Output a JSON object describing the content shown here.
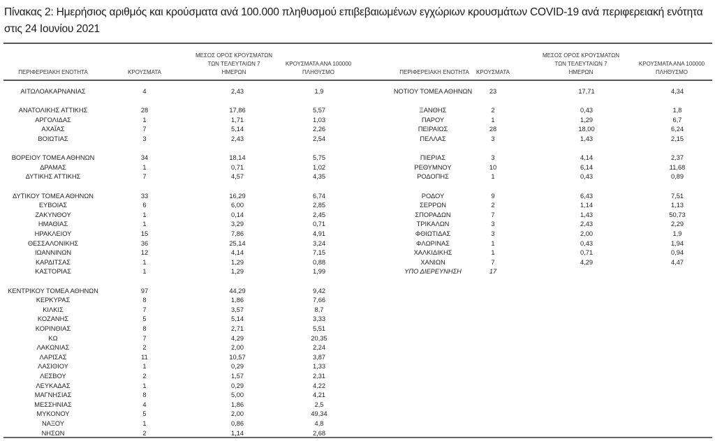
{
  "title": "Πίνακας 2: Ημερήσιος αριθμός και κρούσματα ανά 100.000 πληθυσμού επιβεβαιωμένων εγχώριων κρουσμάτων COVID-19 ανά περιφερειακή ενότητα στις 24 Ιουνίου 2021",
  "headers": {
    "region": "ΠΕΡΙΦΕΡΕΙΑΚΗ ΕΝΟΤΗΤΑ",
    "cases": "ΚΡΟΥΣΜΑΤΑ",
    "avg7_line1": "ΜΕΣΟΣ ΟΡΟΣ ΚΡΟΥΣΜΑΤΩΝ",
    "avg7_line2": "ΤΩΝ ΤΕΛΕΥΤΑΙΩΝ 7",
    "avg7_line3": "ΗΜΕΡΩΝ",
    "per100k_line1": "ΚΡΟΥΣΜΑΤΑ ΑΝΑ 100000",
    "per100k_line2": "ΠΛΗΘΥΣΜΟ"
  },
  "left_rows": [
    [
      "ΑΙΤΩΛΟΑΚΑΡΝΑΝΙΑΣ",
      "4",
      "2,43",
      "1,9"
    ],
    null,
    [
      "ΑΝΑΤΟΛΙΚΗΣ ΑΤΤΙΚΗΣ",
      "28",
      "17,86",
      "5,57"
    ],
    [
      "ΑΡΓΟΛΙΔΑΣ",
      "1",
      "1,71",
      "1,03"
    ],
    [
      "ΑΧΑΪΑΣ",
      "7",
      "5,14",
      "2,26"
    ],
    [
      "ΒΟΙΩΤΙΑΣ",
      "3",
      "2,43",
      "2,54"
    ],
    null,
    [
      "ΒΟΡΕΙΟΥ ΤΟΜΕΑ ΑΘΗΝΩΝ",
      "34",
      "18,14",
      "5,75"
    ],
    [
      "ΔΡΑΜΑΣ",
      "1",
      "0,71",
      "1,02"
    ],
    [
      "ΔΥΤΙΚΗΣ ΑΤΤΙΚΗΣ",
      "7",
      "4,57",
      "4,35"
    ],
    null,
    [
      "ΔΥΤΙΚΟΥ ΤΟΜΕΑ ΑΘΗΝΩΝ",
      "33",
      "16,29",
      "6,74"
    ],
    [
      "ΕΥΒΟΙΑΣ",
      "6",
      "6,00",
      "2,85"
    ],
    [
      "ΖΑΚΥΝΘΟΥ",
      "1",
      "0,14",
      "2,45"
    ],
    [
      "ΗΜΑΘΙΑΣ",
      "1",
      "3,29",
      "0,71"
    ],
    [
      "ΗΡΑΚΛΕΙΟΥ",
      "15",
      "7,86",
      "4,91"
    ],
    [
      "ΘΕΣΣΑΛΟΝΙΚΗΣ",
      "36",
      "25,14",
      "3,24"
    ],
    [
      "ΙΩΑΝΝΙΝΩΝ",
      "12",
      "4,14",
      "7,15"
    ],
    [
      "ΚΑΡΔΙΤΣΑΣ",
      "1",
      "1,29",
      "0,88"
    ],
    [
      "ΚΑΣΤΟΡΙΑΣ",
      "1",
      "1,29",
      "1,99"
    ],
    null,
    [
      "ΚΕΝΤΡΙΚΟΥ ΤΟΜΕΑ ΑΘΗΝΩΝ",
      "97",
      "44,29",
      "9,42"
    ],
    [
      "ΚΕΡΚΥΡΑΣ",
      "8",
      "1,86",
      "7,66"
    ],
    [
      "ΚΙΛΚΙΣ",
      "7",
      "3,57",
      "8,7"
    ],
    [
      "ΚΟΖΑΝΗΣ",
      "5",
      "5,14",
      "3,33"
    ],
    [
      "ΚΟΡΙΝΘΙΑΣ",
      "8",
      "2,71",
      "5,51"
    ],
    [
      "ΚΩ",
      "7",
      "4,29",
      "20,35"
    ],
    [
      "ΛΑΚΩΝΙΑΣ",
      "2",
      "2,00",
      "2,24"
    ],
    [
      "ΛΑΡΙΣΑΣ",
      "11",
      "10,57",
      "3,87"
    ],
    [
      "ΛΑΣΙΘΙΟΥ",
      "1",
      "0,29",
      "1,33"
    ],
    [
      "ΛΕΣΒΟΥ",
      "2",
      "1,57",
      "2,31"
    ],
    [
      "ΛΕΥΚΑΔΑΣ",
      "1",
      "0,29",
      "4,22"
    ],
    [
      "ΜΑΓΝΗΣΙΑΣ",
      "8",
      "5,00",
      "4,21"
    ],
    [
      "ΜΕΣΣΗΝΙΑΣ",
      "4",
      "1,86",
      "2,5"
    ],
    [
      "ΜΥΚΟΝΟΥ",
      "5",
      "2,00",
      "49,34"
    ],
    [
      "ΝΑΞΟΥ",
      "1",
      "0,86",
      "4,8"
    ],
    [
      "ΝΗΣΩΝ",
      "2",
      "1,14",
      "2,68"
    ]
  ],
  "right_rows": [
    [
      "ΝΟΤΙΟΥ ΤΟΜΕΑ ΑΘΗΝΩΝ",
      "23",
      "17,71",
      "4,34"
    ],
    null,
    [
      "ΞΑΝΘΗΣ",
      "2",
      "0,43",
      "1,8"
    ],
    [
      "ΠΑΡΟΥ",
      "1",
      "1,29",
      "6,7"
    ],
    [
      "ΠΕΙΡΑΙΩΣ",
      "28",
      "18,00",
      "6,24"
    ],
    [
      "ΠΕΛΛΑΣ",
      "3",
      "1,43",
      "2,15"
    ],
    null,
    [
      "ΠΙΕΡΙΑΣ",
      "3",
      "4,14",
      "2,37"
    ],
    [
      "ΡΕΘΥΜΝΟΥ",
      "10",
      "6,14",
      "11,68"
    ],
    [
      "ΡΟΔΟΠΗΣ",
      "1",
      "0,43",
      "0,89"
    ],
    null,
    [
      "ΡΟΔΟΥ",
      "9",
      "6,43",
      "7,51"
    ],
    [
      "ΣΕΡΡΩΝ",
      "2",
      "1,14",
      "1,13"
    ],
    [
      "ΣΠΟΡΑΔΩΝ",
      "7",
      "1,43",
      "50,73"
    ],
    [
      "ΤΡΙΚΑΛΩΝ",
      "3",
      "2,43",
      "2,29"
    ],
    [
      "ΦΘΙΩΤΙΔΑΣ",
      "3",
      "2,00",
      "1,9"
    ],
    [
      "ΦΛΩΡΙΝΑΣ",
      "1",
      "0,43",
      "1,94"
    ],
    [
      "ΧΑΛΚΙΔΙΚΗΣ",
      "1",
      "0,71",
      "0,94"
    ],
    [
      "ΧΑΝΙΩΝ",
      "7",
      "4,29",
      "4,47"
    ],
    [
      "ΥΠΟ ΔΙΕΡΕΥΝΗΣΗ",
      "17",
      "",
      ""
    ]
  ],
  "under_investigation_label": "ΥΠΟ ΔΙΕΡΕΥΝΗΣΗ"
}
